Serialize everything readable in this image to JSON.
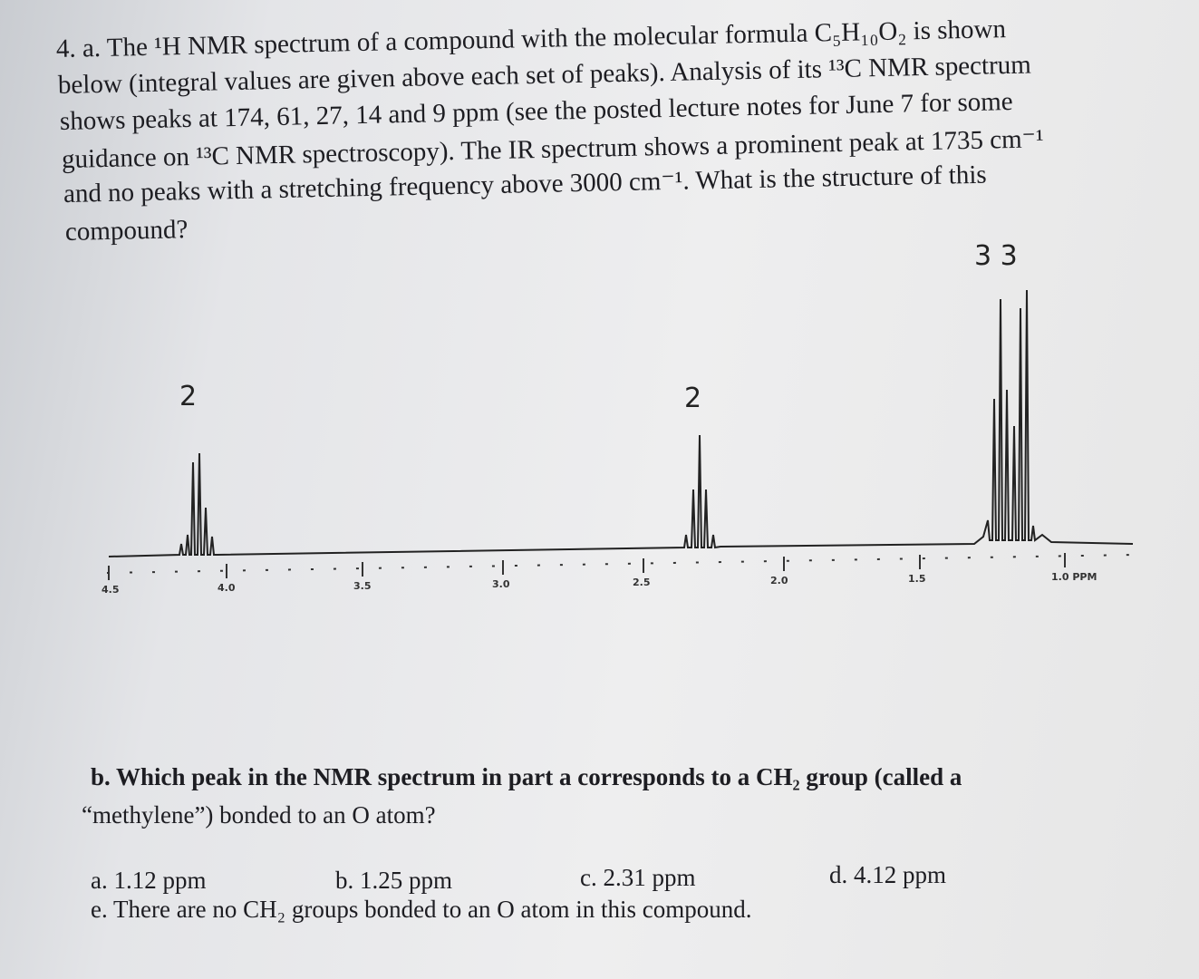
{
  "question_a": {
    "lines": [
      "4. a. The ¹H NMR spectrum of a compound with the molecular formula C₅H₁₀O₂ is shown",
      "below (integral values are given above each set of peaks). Analysis of its ¹³C NMR spectrum",
      "shows peaks at 174, 61, 27, 14 and 9 ppm (see the posted lecture notes for June 7 for some",
      "guidance on ¹³C NMR spectroscopy). The IR spectrum shows a prominent peak at 1735 cm⁻¹",
      "and no peaks with a stretching frequency above 3000 cm⁻¹. What is the structure of this",
      "compound?"
    ]
  },
  "spectrum": {
    "integrals": [
      "2",
      "2",
      "3 3"
    ],
    "axis_labels": [
      "4.5",
      "4.0",
      "3.5",
      "3.0",
      "2.5",
      "2.0",
      "1.5",
      "1.0 PPM"
    ]
  },
  "question_b": {
    "lines": [
      "b. Which peak in the NMR spectrum in part a corresponds to a CH₂ group (called a",
      "“methylene”) bonded to an O atom?"
    ],
    "options": [
      "a. 1.12 ppm",
      "b. 1.25 ppm",
      "c. 2.31 ppm",
      "d. 4.12 ppm",
      "e. There are no CH₂ groups bonded to an O atom in this compound."
    ]
  }
}
